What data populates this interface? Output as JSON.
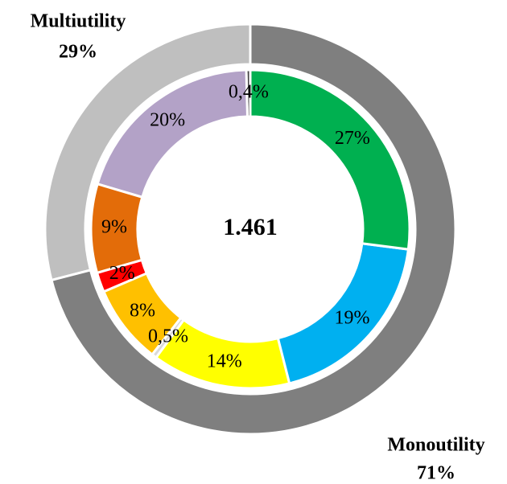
{
  "chart_data": {
    "type": "donut",
    "center_label": "1.461",
    "rings": [
      {
        "labels": [
          "Monoutility",
          "Multiutility"
        ],
        "values": [
          71,
          29
        ],
        "value_labels": [
          "71%",
          "29%"
        ],
        "colors": [
          "#7f7f7f",
          "#bfbfbf"
        ]
      },
      {
        "values": [
          27,
          19,
          14,
          0.5,
          8,
          2,
          9,
          20,
          0.4
        ],
        "value_labels": [
          "27%",
          "19%",
          "14%",
          "0,5%",
          "8%",
          "2%",
          "9%",
          "20%",
          "0,4%"
        ],
        "colors": [
          "#00b050",
          "#00b0f0",
          "#ffff00",
          "#d9d9d9",
          "#ffc000",
          "#ff0000",
          "#e36c09",
          "#b3a2c7",
          "#404040"
        ]
      }
    ]
  }
}
